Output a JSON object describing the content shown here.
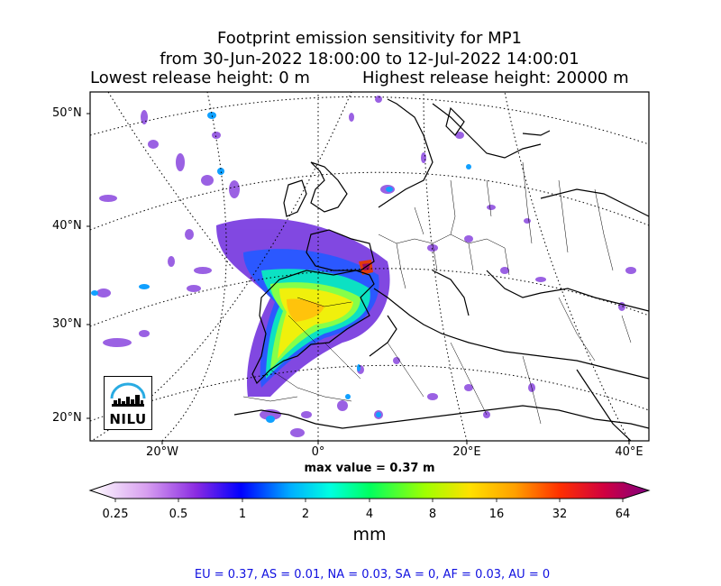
{
  "title": {
    "line1": "Footprint emission sensitivity for MP1",
    "line2": "from 30-Jun-2022 18:00:00 to 12-Jul-2022 14:00:01",
    "lowest": "Lowest release height: 0 m",
    "highest": "Highest release height: 20000 m"
  },
  "map": {
    "lat_labels": [
      "50°N",
      "40°N",
      "30°N",
      "20°N"
    ],
    "lon_labels": [
      "20°W",
      "0°",
      "20°E",
      "40°E"
    ],
    "max_value_label": "max value = 0.37 m",
    "logo_text": "NILU",
    "logo_color": "#29abe2"
  },
  "colorbar": {
    "ticks": [
      "0.25",
      "0.5",
      "1",
      "2",
      "4",
      "8",
      "16",
      "32",
      "64"
    ],
    "unit": "mm",
    "colors": [
      "#ffffff",
      "#d8a0f0",
      "#a040e0",
      "#0000ff",
      "#00b0ff",
      "#00ffe0",
      "#00ff60",
      "#a0ff00",
      "#ffff00",
      "#ffb000",
      "#ff6000",
      "#ff0000",
      "#c00060",
      "#800080"
    ]
  },
  "footer": "EU = 0.37,  AS = 0.01,  NA = 0.03,  SA = 0,  AF = 0.03,  AU = 0"
}
